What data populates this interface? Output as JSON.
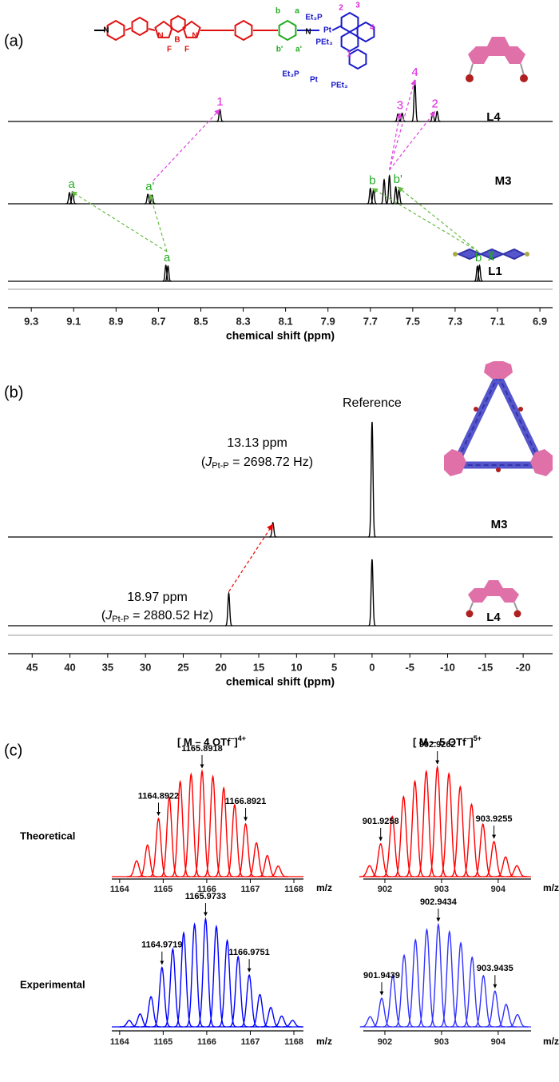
{
  "structure": {
    "labels": [
      {
        "text": "N",
        "color": "#000000"
      },
      {
        "text": "N",
        "color": "#e01010"
      },
      {
        "text": "B",
        "color": "#e01010"
      },
      {
        "text": "N",
        "color": "#e01010"
      },
      {
        "text": "F",
        "color": "#e01010"
      },
      {
        "text": "F",
        "color": "#e01010"
      },
      {
        "text": "b",
        "color": "#22aa22"
      },
      {
        "text": "a",
        "color": "#22aa22"
      },
      {
        "text": "b'",
        "color": "#22aa22"
      },
      {
        "text": "a'",
        "color": "#22aa22"
      },
      {
        "text": "N",
        "color": "#000000"
      },
      {
        "text": "Et₃P",
        "color": "#1a1acc"
      },
      {
        "text": "Pt",
        "color": "#1a1acc"
      },
      {
        "text": "PEt₃",
        "color": "#1a1acc"
      },
      {
        "text": "2",
        "color": "#e020e0"
      },
      {
        "text": "3",
        "color": "#e020e0"
      },
      {
        "text": "4",
        "color": "#e020e0"
      },
      {
        "text": "1",
        "color": "#e020e0"
      },
      {
        "text": "Et₃P",
        "color": "#1a1acc"
      },
      {
        "text": "Pt",
        "color": "#1a1acc"
      },
      {
        "text": "PEt₃",
        "color": "#1a1acc"
      }
    ]
  },
  "chart_data": [
    {
      "type": "spectrum",
      "panel": "(a)",
      "xlabel": "chemical shift (ppm)",
      "xlim": [
        9.41,
        6.84
      ],
      "xticks": [
        9.3,
        9.1,
        8.9,
        8.7,
        8.5,
        8.3,
        8.1,
        7.9,
        7.7,
        7.5,
        7.3,
        7.1,
        6.9
      ],
      "series": [
        {
          "name": "L4",
          "color": "#000000",
          "x": [
            8.41,
            7.57,
            7.55,
            7.49,
            7.405,
            7.385
          ],
          "values": [
            0.29,
            0.18,
            0.2,
            1,
            0.22,
            0.24
          ],
          "label_color": "#e020e0",
          "labels": [
            {
              "text": "1",
              "x": 8.41
            },
            {
              "text": "3",
              "x": 7.56
            },
            {
              "text": "4",
              "x": 7.49
            },
            {
              "text": "2",
              "x": 7.395
            }
          ]
        },
        {
          "name": "M3",
          "color": "#000000",
          "x": [
            9.12,
            9.105,
            8.75,
            8.73,
            7.7,
            7.685,
            7.635,
            7.61,
            7.58,
            7.565
          ],
          "values": [
            0.4,
            0.43,
            0.34,
            0.31,
            0.55,
            0.5,
            0.86,
            1,
            0.6,
            0.5
          ],
          "label_color": "#22aa22",
          "labels": [
            {
              "text": "a",
              "x": 9.11
            },
            {
              "text": "a'",
              "x": 8.74
            },
            {
              "text": "b",
              "x": 7.69
            },
            {
              "text": "b'",
              "x": 7.57
            }
          ]
        },
        {
          "name": "L1",
          "color": "#000000",
          "x": [
            8.665,
            8.655,
            7.195,
            7.185
          ],
          "values": [
            1,
            0.95,
            0.95,
            1
          ],
          "label_color": "#22aa22",
          "labels": [
            {
              "text": "a",
              "x": 8.66
            },
            {
              "text": "b",
              "x": 7.19
            }
          ]
        }
      ]
    },
    {
      "type": "spectrum",
      "panel": "(b)",
      "xlabel": "chemical shift (ppm)",
      "xlim": [
        48.2,
        -23.9
      ],
      "xticks": [
        45,
        40,
        35,
        30,
        25,
        20,
        15,
        10,
        5,
        0,
        -5,
        -10,
        -15,
        -20
      ],
      "reference_label": "Reference",
      "series": [
        {
          "name": "M3",
          "color": "#000000",
          "x": [
            13.13,
            0
          ],
          "values": [
            0.125,
            1
          ],
          "note": {
            "ppm": "13.13 ppm",
            "j": [
              "(",
              "J",
              "Pt-P",
              " = 2698.72 Hz)"
            ]
          }
        },
        {
          "name": "L4",
          "color": "#000000",
          "x": [
            18.97,
            0
          ],
          "values": [
            0.49,
            1
          ],
          "note": {
            "ppm": "18.97 ppm",
            "j": [
              "(",
              "J",
              "Pt-P",
              " = 2880.52 Hz)"
            ]
          }
        }
      ]
    },
    {
      "type": "spectrum",
      "panel": "(c)",
      "title": [
        "[ M – 4 OTf",
        "–",
        "]",
        "4+"
      ],
      "row_label": "Theoretical",
      "xlabel": "m/z",
      "xlim": [
        1163.82,
        1168.22
      ],
      "xticks": [
        1164,
        1165,
        1166,
        1167,
        1168
      ],
      "series": [
        {
          "color": "#ff0000",
          "x": [
            1164.39,
            1164.64,
            1164.8922,
            1165.14,
            1165.39,
            1165.64,
            1165.8918,
            1166.14,
            1166.39,
            1166.64,
            1166.8921,
            1167.14,
            1167.39,
            1167.64
          ],
          "values": [
            0.15,
            0.3,
            0.55,
            0.75,
            0.9,
            0.97,
            1,
            0.95,
            0.84,
            0.68,
            0.5,
            0.32,
            0.2,
            0.1
          ]
        }
      ],
      "peak_labels": [
        1164.8922,
        1165.8918,
        1166.8921
      ]
    },
    {
      "type": "spectrum",
      "title": [
        "[ M – 5 OTf",
        "–",
        "]",
        "5+"
      ],
      "xlabel": "m/z",
      "xlim": [
        901.62,
        904.58
      ],
      "xticks": [
        902,
        903,
        904
      ],
      "series": [
        {
          "color": "#ff0000",
          "x": [
            901.73,
            901.9258,
            902.13,
            902.33,
            902.53,
            902.73,
            902.9262,
            903.13,
            903.33,
            903.53,
            903.73,
            903.9255,
            904.13,
            904.33
          ],
          "values": [
            0.1,
            0.3,
            0.55,
            0.73,
            0.87,
            0.96,
            1,
            0.94,
            0.82,
            0.66,
            0.48,
            0.32,
            0.18,
            0.1
          ]
        }
      ],
      "peak_labels": [
        901.9258,
        902.9262,
        903.9255
      ]
    },
    {
      "type": "spectrum",
      "row_label": "Experimental",
      "xlabel": "m/z",
      "xlim": [
        1163.82,
        1168.22
      ],
      "xticks": [
        1164,
        1165,
        1166,
        1167,
        1168
      ],
      "series": [
        {
          "color": "#0000ff",
          "x": [
            1164.22,
            1164.47,
            1164.72,
            1164.9719,
            1165.22,
            1165.47,
            1165.72,
            1165.9733,
            1166.22,
            1166.47,
            1166.72,
            1166.9751,
            1167.22,
            1167.47,
            1167.72,
            1167.97
          ],
          "values": [
            0.06,
            0.12,
            0.28,
            0.55,
            0.72,
            0.87,
            0.95,
            1,
            0.93,
            0.8,
            0.65,
            0.48,
            0.3,
            0.18,
            0.1,
            0.06
          ]
        }
      ],
      "peak_labels": [
        1164.9719,
        1165.9733,
        1166.9751
      ]
    },
    {
      "type": "spectrum",
      "xlabel": "m/z",
      "xlim": [
        901.62,
        904.58
      ],
      "xticks": [
        902,
        903,
        904
      ],
      "series": [
        {
          "color": "#3333ff",
          "x": [
            901.74,
            901.9439,
            902.14,
            902.34,
            902.54,
            902.74,
            902.9434,
            903.14,
            903.34,
            903.54,
            903.74,
            903.9435,
            904.14,
            904.34
          ],
          "values": [
            0.1,
            0.28,
            0.5,
            0.7,
            0.85,
            0.95,
            1,
            0.93,
            0.82,
            0.68,
            0.5,
            0.35,
            0.22,
            0.12
          ]
        }
      ],
      "peak_labels": [
        901.9439,
        902.9434,
        903.9435
      ]
    }
  ]
}
